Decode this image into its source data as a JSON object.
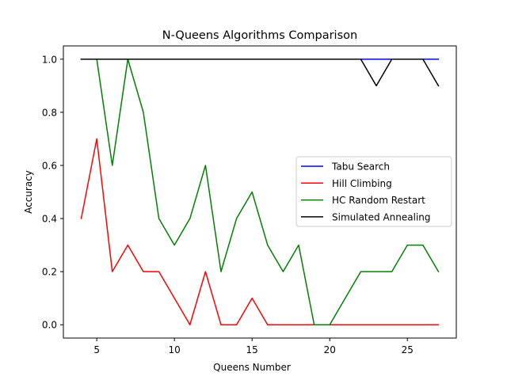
{
  "chart_data": {
    "type": "line",
    "title": "N-Queens Algorithms Comparison",
    "xlabel": "Queens Number",
    "ylabel": "Accuracy",
    "xlim": [
      2.85,
      28.15
    ],
    "ylim": [
      -0.05,
      1.05
    ],
    "xticks": [
      5,
      10,
      15,
      20,
      25
    ],
    "yticks": [
      0.0,
      0.2,
      0.4,
      0.6,
      0.8,
      1.0
    ],
    "ytick_labels": [
      "0.0",
      "0.2",
      "0.4",
      "0.6",
      "0.8",
      "1.0"
    ],
    "grid": false,
    "legend_position": "center-right",
    "x": [
      4,
      5,
      6,
      7,
      8,
      9,
      10,
      11,
      12,
      13,
      14,
      15,
      16,
      17,
      18,
      19,
      20,
      21,
      22,
      23,
      24,
      25,
      26,
      27
    ],
    "series": [
      {
        "name": "Tabu Search",
        "color": "#0000ff",
        "values": [
          1.0,
          1.0,
          1.0,
          1.0,
          1.0,
          1.0,
          1.0,
          1.0,
          1.0,
          1.0,
          1.0,
          1.0,
          1.0,
          1.0,
          1.0,
          1.0,
          1.0,
          1.0,
          1.0,
          1.0,
          1.0,
          1.0,
          1.0,
          1.0
        ]
      },
      {
        "name": "Hill Climbing",
        "color": "#ff0000",
        "values": [
          0.4,
          0.7,
          0.2,
          0.3,
          0.2,
          0.2,
          0.1,
          0.0,
          0.2,
          0.0,
          0.0,
          0.1,
          0.0,
          0.0,
          0.0,
          0.0,
          0.0,
          0.0,
          0.0,
          0.0,
          0.0,
          0.0,
          0.0,
          0.0
        ]
      },
      {
        "name": "HC Random Restart",
        "color": "#008000",
        "values": [
          1.0,
          1.0,
          0.6,
          1.0,
          0.8,
          0.4,
          0.3,
          0.4,
          0.6,
          0.2,
          0.4,
          0.5,
          0.3,
          0.2,
          0.3,
          0.0,
          0.0,
          0.1,
          0.2,
          0.2,
          0.2,
          0.3,
          0.3,
          0.2
        ]
      },
      {
        "name": "Simulated Annealing",
        "color": "#000000",
        "values": [
          1.0,
          1.0,
          1.0,
          1.0,
          1.0,
          1.0,
          1.0,
          1.0,
          1.0,
          1.0,
          1.0,
          1.0,
          1.0,
          1.0,
          1.0,
          1.0,
          1.0,
          1.0,
          1.0,
          0.9,
          1.0,
          1.0,
          1.0,
          0.9
        ]
      }
    ]
  }
}
